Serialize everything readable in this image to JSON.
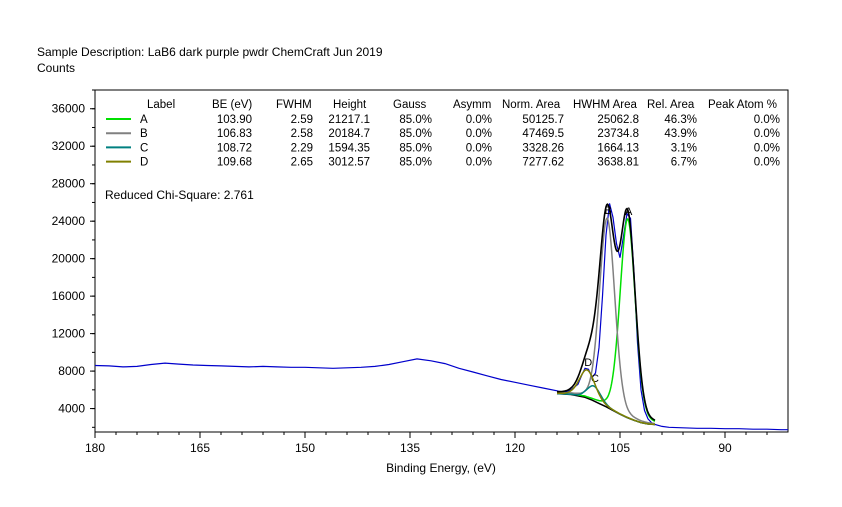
{
  "header": {
    "description_label": "Sample Description:",
    "description": "LaB6 dark purple pwdr ChemCraft Jun 2019"
  },
  "chart_data": {
    "type": "line",
    "title": "",
    "xlabel": "Binding Energy, (eV)",
    "ylabel": "Counts",
    "xlim": [
      180,
      81
    ],
    "ylim": [
      1500,
      38000
    ],
    "x_reversed": true,
    "x_ticks": [
      180,
      165,
      150,
      135,
      120,
      105,
      90
    ],
    "y_ticks": [
      4000,
      8000,
      12000,
      16000,
      20000,
      24000,
      28000,
      32000,
      36000
    ],
    "grid": false,
    "legend_position": "top",
    "reduced_chi_square_label": "Reduced Chi-Square:",
    "reduced_chi_square": "2.761",
    "table": {
      "headers": [
        "Label",
        "BE (eV)",
        "FWHM",
        "Height",
        "Gauss",
        "Asymm",
        "Norm. Area",
        "HWHM Area",
        "Rel. Area",
        "Peak Atom %"
      ],
      "rows": [
        {
          "label": "A",
          "color": "#00e000",
          "cells": [
            "103.90",
            "2.59",
            "21217.1",
            "85.0%",
            "0.0%",
            "50125.7",
            "25062.8",
            "46.3%",
            "0.0%"
          ]
        },
        {
          "label": "B",
          "color": "#808080",
          "cells": [
            "106.83",
            "2.58",
            "20184.7",
            "85.0%",
            "0.0%",
            "47469.5",
            "23734.8",
            "43.9%",
            "0.0%"
          ]
        },
        {
          "label": "C",
          "color": "#008080",
          "cells": [
            "108.72",
            "2.29",
            "1594.35",
            "85.0%",
            "0.0%",
            "3328.26",
            "1664.13",
            "3.1%",
            "0.0%"
          ]
        },
        {
          "label": "D",
          "color": "#808000",
          "cells": [
            "109.68",
            "2.65",
            "3012.57",
            "85.0%",
            "0.0%",
            "7277.62",
            "3638.81",
            "6.7%",
            "0.0%"
          ]
        }
      ]
    },
    "raw_spectrum": {
      "name": "",
      "color": "#0000cc",
      "x": [
        180,
        178,
        176,
        174,
        172,
        170,
        168,
        166,
        164,
        162,
        160,
        158,
        156,
        154,
        152,
        150,
        148,
        146,
        144,
        142,
        140,
        138,
        136,
        134,
        132,
        130,
        128,
        126,
        124,
        122,
        120,
        118,
        116,
        114,
        113,
        112,
        111,
        110.5,
        110,
        109.5,
        109,
        108.5,
        108,
        107.5,
        107,
        106.5,
        106,
        105.5,
        105,
        104.5,
        104,
        103.5,
        103,
        102.5,
        102,
        101.5,
        101,
        100.5,
        100,
        99,
        98,
        96,
        94,
        92,
        90,
        88,
        86,
        84,
        82,
        81
      ],
      "y": [
        8600,
        8550,
        8450,
        8500,
        8700,
        8850,
        8750,
        8650,
        8600,
        8550,
        8500,
        8450,
        8500,
        8450,
        8400,
        8400,
        8350,
        8300,
        8350,
        8400,
        8500,
        8700,
        9000,
        9300,
        9100,
        8800,
        8300,
        7900,
        7500,
        7100,
        6800,
        6500,
        6200,
        5900,
        5700,
        6000,
        6600,
        7500,
        8300,
        8200,
        7300,
        7800,
        10500,
        16000,
        22500,
        25900,
        24400,
        21600,
        20100,
        22400,
        24800,
        24300,
        18500,
        11000,
        6000,
        3800,
        2900,
        2500,
        2300,
        2100,
        2000,
        1950,
        1900,
        1900,
        1850,
        1850,
        1800,
        1800,
        1750,
        1750
      ]
    },
    "background": {
      "name": "",
      "color": "#000000",
      "x": [
        114,
        112,
        110,
        109,
        108,
        107,
        106,
        105,
        104,
        103,
        102,
        101,
        100
      ],
      "y": [
        5600,
        5500,
        5200,
        4900,
        4550,
        4200,
        3800,
        3400,
        3050,
        2750,
        2500,
        2350,
        2300
      ]
    },
    "peaks": [
      {
        "label": "A",
        "center": 103.9,
        "fwhm": 2.59,
        "height": 21217.1,
        "color": "#00e000"
      },
      {
        "label": "B",
        "center": 106.83,
        "fwhm": 2.58,
        "height": 20184.7,
        "color": "#808080"
      },
      {
        "label": "C",
        "center": 108.72,
        "fwhm": 2.29,
        "height": 1594.35,
        "color": "#008080"
      },
      {
        "label": "D",
        "center": 109.68,
        "fwhm": 2.65,
        "height": 3012.57,
        "color": "#808000"
      }
    ],
    "envelope_color": "#000000"
  }
}
